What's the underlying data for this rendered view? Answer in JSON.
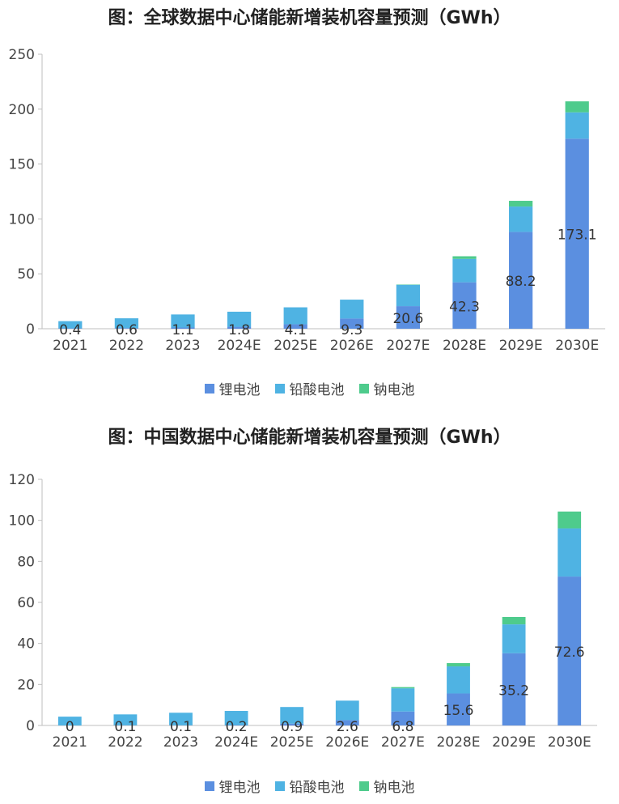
{
  "chart_data": [
    {
      "type": "bar",
      "stacked": true,
      "title": "图：全球数据中心储能新增装机容量预测（GWh）",
      "categories": [
        "2021",
        "2022",
        "2023",
        "2024E",
        "2025E",
        "2026E",
        "2027E",
        "2028E",
        "2029E",
        "2030E"
      ],
      "series": [
        {
          "name": "锂电池",
          "color": "#5b8fe0",
          "values": [
            0.4,
            0.6,
            1.1,
            1.8,
            4.1,
            9.3,
            20.6,
            42.3,
            88.2,
            173.1
          ],
          "labels": [
            "0.4",
            "0.6",
            "1.1",
            "1.8",
            "4.1",
            "9.3",
            "20.6",
            "42.3",
            "88.2",
            "173.1"
          ]
        },
        {
          "name": "铅酸电池",
          "color": "#4fb3e3",
          "values": [
            6.5,
            8.9,
            11.9,
            13.7,
            15.4,
            17.2,
            19.4,
            21.3,
            23.1,
            24.0
          ]
        },
        {
          "name": "钠电池",
          "color": "#4ecb8c",
          "values": [
            0,
            0,
            0,
            0,
            0,
            0,
            0.3,
            2.4,
            5.2,
            10.0
          ]
        }
      ],
      "ylim": [
        0,
        250
      ],
      "yticks": [
        0,
        50,
        100,
        150,
        200,
        250
      ],
      "legend_position": "bottom",
      "grid": false
    },
    {
      "type": "bar",
      "stacked": true,
      "title": "图：中国数据中心储能新增装机容量预测（GWh）",
      "categories": [
        "2021",
        "2022",
        "2023",
        "2024E",
        "2025E",
        "2026E",
        "2027E",
        "2028E",
        "2029E",
        "2030E"
      ],
      "series": [
        {
          "name": "锂电池",
          "color": "#5b8fe0",
          "values": [
            0,
            0.1,
            0.1,
            0.2,
            0.9,
            2.6,
            6.8,
            15.6,
            35.2,
            72.6
          ],
          "labels": [
            "0",
            "0.1",
            "0.1",
            "0.2",
            "0.9",
            "2.6",
            "6.8",
            "15.6",
            "35.2",
            "72.6"
          ]
        },
        {
          "name": "铅酸电池",
          "color": "#4fb3e3",
          "values": [
            4.3,
            5.3,
            6.1,
            6.9,
            8.1,
            9.5,
            11.3,
            13.2,
            14.1,
            23.5
          ]
        },
        {
          "name": "钠电池",
          "color": "#4ecb8c",
          "values": [
            0,
            0,
            0,
            0,
            0,
            0,
            0.6,
            1.6,
            3.6,
            8.2
          ]
        }
      ],
      "ylim": [
        0,
        120
      ],
      "yticks": [
        0,
        20,
        40,
        60,
        80,
        100,
        120
      ],
      "legend_position": "bottom",
      "grid": false
    }
  ]
}
